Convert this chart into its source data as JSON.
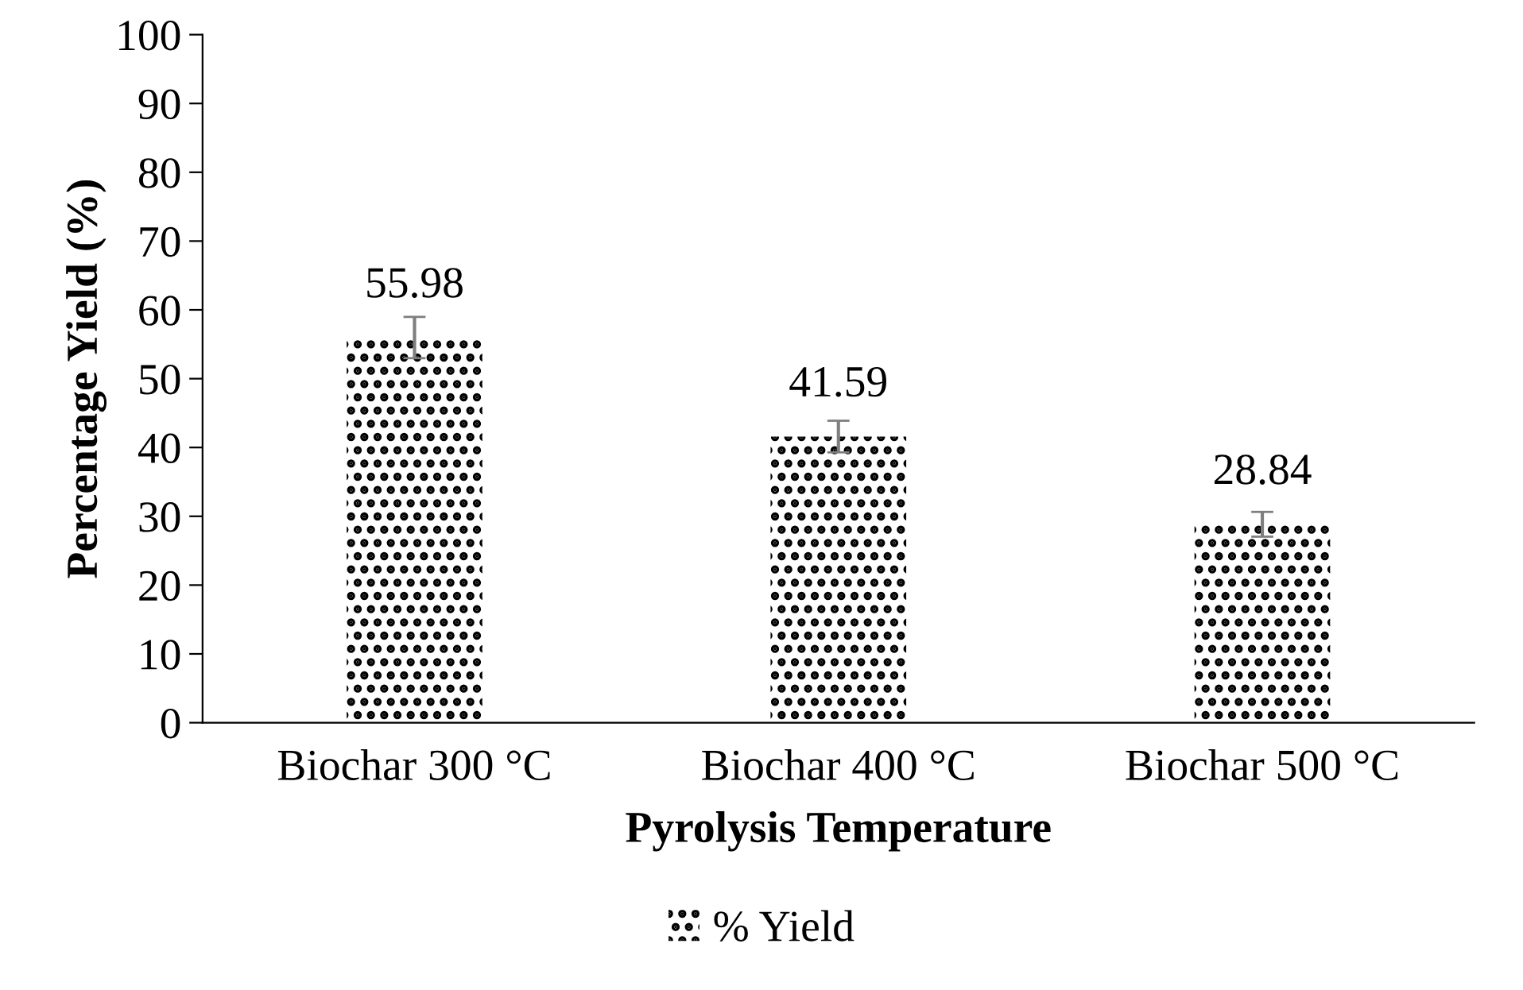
{
  "chart_data": {
    "type": "bar",
    "xlabel": "Pyrolysis Temperature",
    "ylabel": "Percentage Yield (%)",
    "categories": [
      "Biochar 300 °C",
      "Biochar 400 °C",
      "Biochar 500 °C"
    ],
    "series": [
      {
        "name": "% Yield",
        "color": "#000000",
        "values": [
          55.98,
          41.59,
          28.84
        ],
        "errors": [
          3,
          2.3,
          1.8
        ]
      }
    ],
    "ylim": [
      0,
      100
    ],
    "yticks": [
      0,
      10,
      20,
      30,
      40,
      50,
      60,
      70,
      80,
      90,
      100
    ],
    "data_labels": true,
    "legend": "bottom",
    "grid": false
  }
}
